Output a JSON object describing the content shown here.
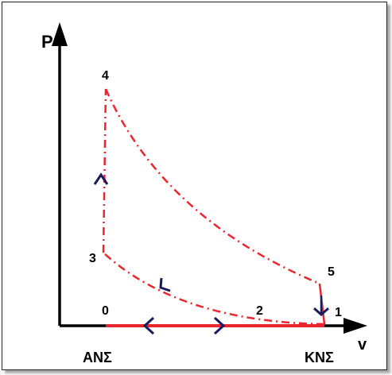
{
  "axes": {
    "y_label": "P",
    "x_label": "v"
  },
  "points": {
    "p0": "0",
    "p1": "1",
    "p2": "2",
    "p3": "3",
    "p4": "4",
    "p5": "5"
  },
  "bottom_labels": {
    "left": "ΑΝΣ",
    "right": "ΚΝΣ"
  },
  "colors": {
    "cycle": "#e8262e",
    "axis": "#000000",
    "arrow": "#1a1a5e"
  }
}
